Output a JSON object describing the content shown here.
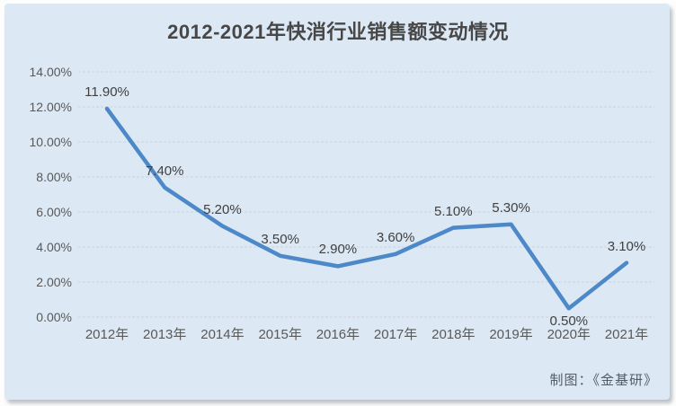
{
  "title": "2012-2021年快消行业销售额变动情况",
  "credit": "制图：《金基研》",
  "colors": {
    "card_background": "#dce8f4",
    "line": "#4d89c8",
    "gridline": "#ccd4dd",
    "title_text": "#474747",
    "tick_text": "#595959",
    "data_label_text": "#404040"
  },
  "chart_data": {
    "type": "line",
    "title": "2012-2021年快消行业销售额变动情况",
    "categories": [
      "2012年",
      "2013年",
      "2014年",
      "2015年",
      "2016年",
      "2017年",
      "2018年",
      "2019年",
      "2020年",
      "2021年"
    ],
    "values": [
      11.9,
      7.4,
      5.2,
      3.5,
      2.9,
      3.6,
      5.1,
      5.3,
      0.5,
      3.1
    ],
    "point_labels": [
      "11.90%",
      "7.40%",
      "5.20%",
      "3.50%",
      "2.90%",
      "3.60%",
      "5.10%",
      "5.30%",
      "0.50%",
      "3.10%"
    ],
    "label_placement": [
      "above",
      "above",
      "above",
      "above",
      "above",
      "above",
      "above",
      "above",
      "below",
      "above"
    ],
    "y_ticks": [
      "14.00%",
      "12.00%",
      "10.00%",
      "8.00%",
      "6.00%",
      "4.00%",
      "2.00%",
      "0.00%"
    ],
    "xlabel": "",
    "ylabel": "",
    "ylim": [
      0,
      14
    ],
    "grid": true,
    "legend": false
  }
}
